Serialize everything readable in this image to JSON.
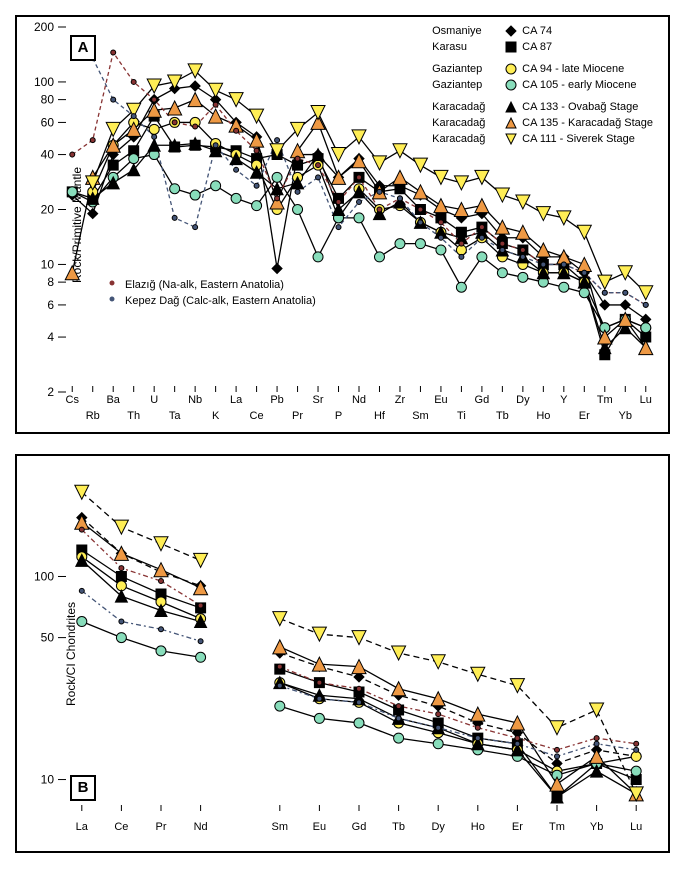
{
  "panelA": {
    "letter": "A",
    "ylabel": "Rock/Primitive Mantle",
    "ylim": [
      2,
      200
    ],
    "ytick_major": [
      2,
      4,
      6,
      8,
      10,
      20,
      40,
      60,
      80,
      100,
      200
    ],
    "xcats": [
      "Cs",
      "Rb",
      "Ba",
      "Th",
      "U",
      "Ta",
      "Nb",
      "K",
      "La",
      "Ce",
      "Pb",
      "Pr",
      "Sr",
      "P",
      "Nd",
      "Hf",
      "Zr",
      "Sm",
      "Eu",
      "Ti",
      "Gd",
      "Tb",
      "Dy",
      "Ho",
      "Y",
      "Er",
      "Tm",
      "Yb",
      "Lu"
    ],
    "xcats_offset_odd": true,
    "legend_main": [
      {
        "loc": "Osmaniye",
        "marker": "diamond",
        "fill": "#000000",
        "code": "CA 74",
        "extra": ""
      },
      {
        "loc": "Karasu",
        "marker": "square",
        "fill": "#000000",
        "code": "CA 87",
        "extra": ""
      },
      {
        "loc": "Gaziantep",
        "marker": "circle",
        "fill": "#ffee55",
        "code": "CA 94",
        "extra": "- late Miocene"
      },
      {
        "loc": "Gaziantep",
        "marker": "circle",
        "fill": "#88ddbb",
        "code": "CA 105",
        "extra": "- early Miocene"
      },
      {
        "loc": "Karacadağ",
        "marker": "triangle-up",
        "fill": "#000000",
        "code": "CA 133",
        "extra": "- Ovabağ Stage"
      },
      {
        "loc": "Karacadağ",
        "marker": "triangle-up",
        "fill": "#ee9944",
        "code": "CA 135",
        "extra": "- Karacadağ Stage"
      },
      {
        "loc": "Karacadağ",
        "marker": "triangle-down",
        "fill": "#ffee55",
        "code": "CA 111",
        "extra": "- Siverek Stage"
      }
    ],
    "legend_small": [
      {
        "label": "Elazığ (Na-alk, Eastern Anatolia)",
        "fill": "#883333"
      },
      {
        "label": "Kepez Dağ (Calc-alk, Eastern Anatolia)",
        "fill": "#445577"
      }
    ],
    "series": [
      {
        "marker": "diamond",
        "fill": "#000000",
        "stroke": "#000000",
        "dash": "",
        "size": 5,
        "y": [
          24,
          19,
          40,
          50,
          80,
          92,
          95,
          80,
          60,
          50,
          9.5,
          40,
          40,
          30,
          38,
          27,
          27,
          24,
          20,
          18,
          19,
          14,
          14,
          11,
          11,
          9,
          6,
          6,
          5
        ]
      },
      {
        "marker": "square",
        "fill": "#000000",
        "stroke": "#000000",
        "dash": "",
        "size": 5,
        "y": [
          25,
          23,
          35,
          42,
          65,
          44,
          45,
          44,
          42,
          38,
          40,
          35,
          38,
          23,
          30,
          25,
          26,
          20,
          18,
          15,
          16,
          13,
          12,
          10,
          10,
          8,
          3.2,
          5,
          4
        ]
      },
      {
        "marker": "circle",
        "fill": "#ffee55",
        "stroke": "#000000",
        "dash": "",
        "size": 5,
        "y": [
          null,
          25,
          45,
          60,
          55,
          60,
          60,
          46,
          40,
          35,
          20,
          30,
          35,
          18,
          26,
          20,
          21,
          17,
          15,
          12,
          14,
          11,
          10,
          9,
          9,
          8,
          4.5,
          5,
          4.5
        ]
      },
      {
        "marker": "circle",
        "fill": "#88ddbb",
        "stroke": "#000000",
        "dash": "",
        "size": 5,
        "y": [
          25,
          22,
          30,
          38,
          40,
          26,
          24,
          27,
          23,
          21,
          30,
          20,
          11,
          18,
          18,
          11,
          13,
          13,
          12,
          7.5,
          11,
          9,
          8.5,
          8,
          7.5,
          7,
          4.5,
          5,
          4.5
        ]
      },
      {
        "marker": "triangle-up",
        "fill": "#000000",
        "stroke": "#000000",
        "dash": "",
        "size": 6,
        "y": [
          null,
          23,
          28,
          33,
          45,
          45,
          46,
          42,
          38,
          32,
          26,
          28,
          40,
          20,
          25,
          19,
          22,
          17,
          15,
          14,
          15,
          12,
          11,
          9,
          9,
          8,
          3.5,
          4.5,
          3.5
        ]
      },
      {
        "marker": "triangle-up",
        "fill": "#ee9944",
        "stroke": "#000000",
        "dash": "",
        "size": 7,
        "y": [
          9,
          30,
          45,
          55,
          70,
          72,
          80,
          65,
          58,
          48,
          22,
          42,
          60,
          30,
          37,
          25,
          30,
          25,
          21,
          20,
          21,
          16,
          15,
          12,
          11,
          10,
          4,
          5,
          3.5
        ]
      },
      {
        "marker": "triangle-down",
        "fill": "#ffee55",
        "stroke": "#000000",
        "dash": "",
        "size": 7,
        "y": [
          null,
          28,
          55,
          70,
          95,
          100,
          115,
          90,
          80,
          65,
          42,
          55,
          68,
          40,
          50,
          36,
          42,
          35,
          30,
          28,
          30,
          24,
          22,
          19,
          18,
          15,
          8,
          9,
          7
        ]
      },
      {
        "marker": "dot",
        "fill": "#883333",
        "stroke": "#883333",
        "dash": "4 3",
        "size": 2.5,
        "y": [
          40,
          48,
          145,
          100,
          80,
          60,
          57,
          75,
          54,
          42,
          23,
          38,
          35,
          22,
          30,
          20,
          23,
          20,
          17,
          13,
          16,
          13,
          12,
          10,
          10,
          9,
          7,
          7,
          6
        ]
      },
      {
        "marker": "dot",
        "fill": "#445577",
        "stroke": "#445577",
        "dash": "4 3",
        "size": 2.5,
        "y": [
          null,
          135,
          80,
          65,
          50,
          18,
          16,
          45,
          33,
          27,
          48,
          25,
          30,
          16,
          22,
          25,
          23,
          17,
          14,
          11,
          14,
          12,
          11,
          10,
          10,
          9,
          7,
          7,
          6
        ]
      }
    ]
  },
  "panelB": {
    "letter": "B",
    "ylabel": "Rock/CI Chondrites",
    "ylim": [
      7,
      350
    ],
    "ytick_major": [
      10,
      50,
      100
    ],
    "xcats": [
      "La",
      "Ce",
      "Pr",
      "Nd",
      "",
      "Sm",
      "Eu",
      "Gd",
      "Tb",
      "Dy",
      "Ho",
      "Er",
      "Tm",
      "Yb",
      "Lu"
    ],
    "series": [
      {
        "marker": "diamond",
        "fill": "#000000",
        "stroke": "#000000",
        "dash": "6 4",
        "size": 5,
        "y": [
          195,
          130,
          105,
          90,
          null,
          42,
          36,
          32,
          26,
          23,
          19,
          17,
          12,
          14,
          13
        ]
      },
      {
        "marker": "square",
        "fill": "#000000",
        "stroke": "#000000",
        "dash": "",
        "size": 5,
        "y": [
          135,
          100,
          82,
          70,
          null,
          35,
          30,
          27,
          22,
          19,
          16,
          15,
          8.2,
          12,
          10
        ]
      },
      {
        "marker": "circle",
        "fill": "#ffee55",
        "stroke": "#000000",
        "dash": "",
        "size": 5,
        "y": [
          125,
          90,
          75,
          62,
          null,
          30,
          25,
          24,
          19,
          17,
          15,
          14,
          11,
          12,
          13
        ]
      },
      {
        "marker": "circle",
        "fill": "#88ddbb",
        "stroke": "#000000",
        "dash": "",
        "size": 5,
        "y": [
          60,
          50,
          43,
          40,
          null,
          23,
          20,
          19,
          16,
          15,
          14,
          13,
          10.5,
          12,
          11
        ]
      },
      {
        "marker": "triangle-up",
        "fill": "#000000",
        "stroke": "#000000",
        "dash": "",
        "size": 6,
        "y": [
          120,
          80,
          68,
          60,
          null,
          30,
          26,
          25,
          20,
          18,
          15,
          14,
          8.2,
          11,
          8.5
        ]
      },
      {
        "marker": "triangle-up",
        "fill": "#ee9944",
        "stroke": "#000000",
        "dash": "",
        "size": 7,
        "y": [
          185,
          130,
          108,
          88,
          null,
          45,
          37,
          36,
          28,
          25,
          21,
          19,
          9.5,
          13,
          8.5
        ]
      },
      {
        "marker": "triangle-down",
        "fill": "#ffee55",
        "stroke": "#000000",
        "dash": "6 4",
        "size": 7,
        "y": [
          260,
          175,
          145,
          120,
          null,
          62,
          52,
          50,
          42,
          38,
          33,
          29,
          18,
          22,
          8.5
        ]
      },
      {
        "marker": "dot",
        "fill": "#883333",
        "stroke": "#883333",
        "dash": "5 3 2 3",
        "size": 2.5,
        "y": [
          170,
          110,
          95,
          72,
          null,
          36,
          30,
          28,
          23,
          21,
          18,
          16,
          14,
          16,
          15
        ]
      },
      {
        "marker": "dot",
        "fill": "#445577",
        "stroke": "#445577",
        "dash": "5 3 2 3",
        "size": 2.5,
        "y": [
          85,
          60,
          55,
          48,
          null,
          29,
          25,
          24,
          20,
          18,
          16,
          15,
          13,
          15,
          14
        ]
      }
    ]
  }
}
